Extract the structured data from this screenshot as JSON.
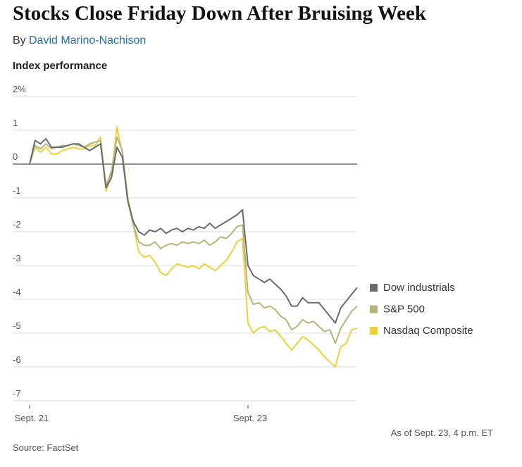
{
  "chart_data": {
    "type": "line",
    "title": "Stocks Close Friday Down After Bruising Week",
    "byline": {
      "prefix": "By",
      "author": "David Marino-Nachison"
    },
    "subtitle": "Index performance",
    "note": "As of Sept. 23, 4 p.m. ET",
    "source": "Source: FactSet",
    "categories": [
      "Sept. 21",
      null,
      null,
      null,
      null,
      null,
      null,
      null,
      null,
      null,
      null,
      null,
      null,
      null,
      null,
      null,
      null,
      null,
      null,
      null,
      null,
      null,
      null,
      null,
      null,
      null,
      null,
      null,
      null,
      null,
      null,
      null,
      null,
      null,
      null,
      null,
      null,
      null,
      null,
      null,
      "Sept. 23",
      null,
      null,
      null,
      null,
      null,
      null,
      null,
      null,
      null,
      null,
      null,
      null,
      null,
      null,
      null,
      null,
      null,
      null,
      null,
      null
    ],
    "series": [
      {
        "name": "Dow industrials",
        "color": "#6b6b6b",
        "values": [
          0,
          0.7,
          0.6,
          0.75,
          0.5,
          0.5,
          0.5,
          0.55,
          0.6,
          0.6,
          0.5,
          0.4,
          0.5,
          0.6,
          -0.7,
          -0.4,
          0.5,
          0.2,
          -1.1,
          -1.7,
          -2.0,
          -2.1,
          -1.95,
          -2.0,
          -1.9,
          -2.05,
          -1.95,
          -1.9,
          -2.0,
          -1.9,
          -1.95,
          -1.85,
          -1.9,
          -1.75,
          -1.9,
          -1.8,
          -1.7,
          -1.6,
          -1.5,
          -1.35,
          -3.0,
          -3.3,
          -3.4,
          -3.5,
          -3.4,
          -3.55,
          -3.7,
          -3.9,
          -4.2,
          -4.2,
          -3.95,
          -4.1,
          -4.1,
          -4.1,
          -4.3,
          -4.5,
          -4.7,
          -4.25,
          -4.05,
          -3.85,
          -3.65
        ]
      },
      {
        "name": "S&P 500",
        "color": "#b8b37a",
        "values": [
          0,
          0.55,
          0.45,
          0.6,
          0.45,
          0.5,
          0.55,
          0.55,
          0.6,
          0.55,
          0.5,
          0.6,
          0.65,
          0.7,
          -0.65,
          -0.2,
          0.8,
          0.4,
          -1.1,
          -1.8,
          -2.3,
          -2.4,
          -2.4,
          -2.3,
          -2.5,
          -2.4,
          -2.35,
          -2.4,
          -2.3,
          -2.35,
          -2.3,
          -2.35,
          -2.25,
          -2.4,
          -2.3,
          -2.15,
          -2.2,
          -2.05,
          -1.85,
          -1.8,
          -3.8,
          -4.15,
          -4.1,
          -4.25,
          -4.2,
          -4.3,
          -4.5,
          -4.6,
          -4.9,
          -4.8,
          -4.6,
          -4.7,
          -4.65,
          -4.8,
          -4.95,
          -4.9,
          -5.3,
          -4.85,
          -4.6,
          -4.35,
          -4.2
        ]
      },
      {
        "name": "Nasdaq Composite",
        "color": "#f0cf3a",
        "values": [
          0,
          0.5,
          0.35,
          0.5,
          0.3,
          0.3,
          0.4,
          0.45,
          0.5,
          0.45,
          0.45,
          0.55,
          0.55,
          0.8,
          -0.8,
          -0.3,
          1.1,
          0.3,
          -1.0,
          -1.8,
          -2.6,
          -2.75,
          -2.7,
          -2.9,
          -3.2,
          -3.3,
          -3.1,
          -2.95,
          -3.0,
          -3.05,
          -3.0,
          -3.1,
          -2.95,
          -3.05,
          -3.15,
          -3.0,
          -2.85,
          -2.6,
          -2.3,
          -2.2,
          -4.7,
          -5.0,
          -4.85,
          -4.8,
          -4.95,
          -4.9,
          -5.1,
          -5.3,
          -5.5,
          -5.3,
          -5.1,
          -5.2,
          -5.35,
          -5.5,
          -5.7,
          -5.85,
          -6.0,
          -5.4,
          -5.3,
          -4.9,
          -4.85
        ]
      }
    ],
    "ylim": [
      -7,
      2
    ],
    "yticks": [
      -7,
      -6,
      -5,
      -4,
      -3,
      -2,
      -1,
      0,
      1,
      {
        "value": 2,
        "label": "2%"
      }
    ],
    "grid": true,
    "zero_line_color": "#222222",
    "legend": "right"
  }
}
